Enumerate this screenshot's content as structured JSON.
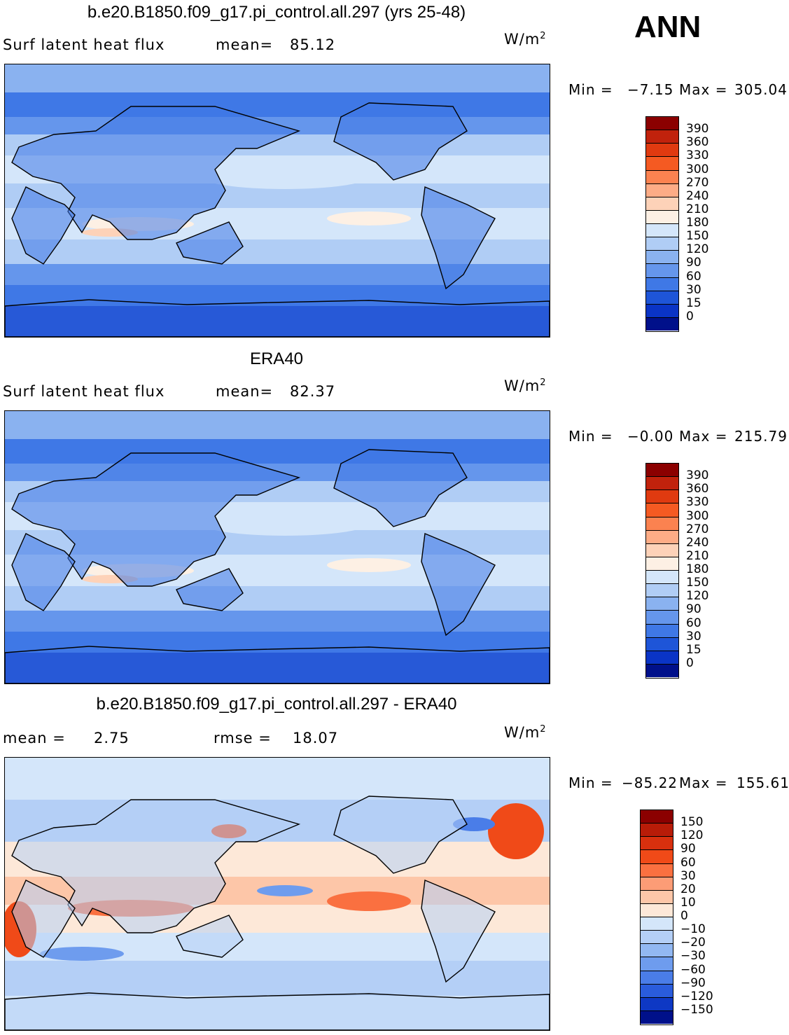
{
  "season": "ANN",
  "panels": [
    {
      "title": "b.e20.B1850.f09_g17.pi_control.all.297 (yrs 25-48)",
      "left_label": "Surf latent heat flux",
      "stat1_label": "mean=",
      "stat1_value": "85.12",
      "stat2_label": "",
      "stat2_value": "",
      "units_base": "W/m",
      "units_sup": "2",
      "min_label": "Min =",
      "min_value": "−7.15",
      "max_label": "Max =",
      "max_value": "305.04",
      "colorbar": {
        "labels": [
          "390",
          "360",
          "330",
          "300",
          "270",
          "240",
          "210",
          "180",
          "150",
          "120",
          "90",
          "60",
          "30",
          "15",
          "0"
        ],
        "colors": [
          "#8b0000",
          "#c1220c",
          "#e03a10",
          "#f55a22",
          "#fb8250",
          "#fdac86",
          "#fdd2b8",
          "#fdf0e4",
          "#d4e6fa",
          "#b0cdf5",
          "#8ab2f0",
          "#6596ec",
          "#3f78e6",
          "#1e55d8",
          "#0a34c6",
          "#00108a"
        ]
      },
      "map_kind": "abs"
    },
    {
      "title": "ERA40",
      "left_label": "Surf latent heat flux",
      "stat1_label": "mean=",
      "stat1_value": "82.37",
      "stat2_label": "",
      "stat2_value": "",
      "units_base": "W/m",
      "units_sup": "2",
      "min_label": "Min =",
      "min_value": "−0.00",
      "max_label": "Max =",
      "max_value": "215.79",
      "colorbar": {
        "labels": [
          "390",
          "360",
          "330",
          "300",
          "270",
          "240",
          "210",
          "180",
          "150",
          "120",
          "90",
          "60",
          "30",
          "15",
          "0"
        ],
        "colors": [
          "#8b0000",
          "#c1220c",
          "#e03a10",
          "#f55a22",
          "#fb8250",
          "#fdac86",
          "#fdd2b8",
          "#fdf0e4",
          "#d4e6fa",
          "#b0cdf5",
          "#8ab2f0",
          "#6596ec",
          "#3f78e6",
          "#1e55d8",
          "#0a34c6",
          "#00108a"
        ]
      },
      "map_kind": "abs"
    },
    {
      "title": "b.e20.B1850.f09_g17.pi_control.all.297 - ERA40",
      "left_label": "mean =",
      "stat1_label": "",
      "stat1_value": "2.75",
      "stat2_label": "rmse =",
      "stat2_value": "18.07",
      "units_base": "W/m",
      "units_sup": "2",
      "min_label": "Min =",
      "min_value": "−85.22",
      "max_label": "Max =",
      "max_value": "155.61",
      "colorbar": {
        "labels": [
          "150",
          "120",
          "90",
          "60",
          "30",
          "20",
          "10",
          "0",
          "−10",
          "−20",
          "−30",
          "−60",
          "−90",
          "−120",
          "−150"
        ],
        "colors": [
          "#8b0000",
          "#b81c08",
          "#d8300e",
          "#f04a18",
          "#fa7040",
          "#fc9c76",
          "#fdc6a8",
          "#fde8d8",
          "#d4e6fa",
          "#b4cff6",
          "#92b8f2",
          "#6e9cee",
          "#4a7de8",
          "#2a5cdc",
          "#0e38c4",
          "#00108a"
        ]
      },
      "map_kind": "diff"
    }
  ]
}
